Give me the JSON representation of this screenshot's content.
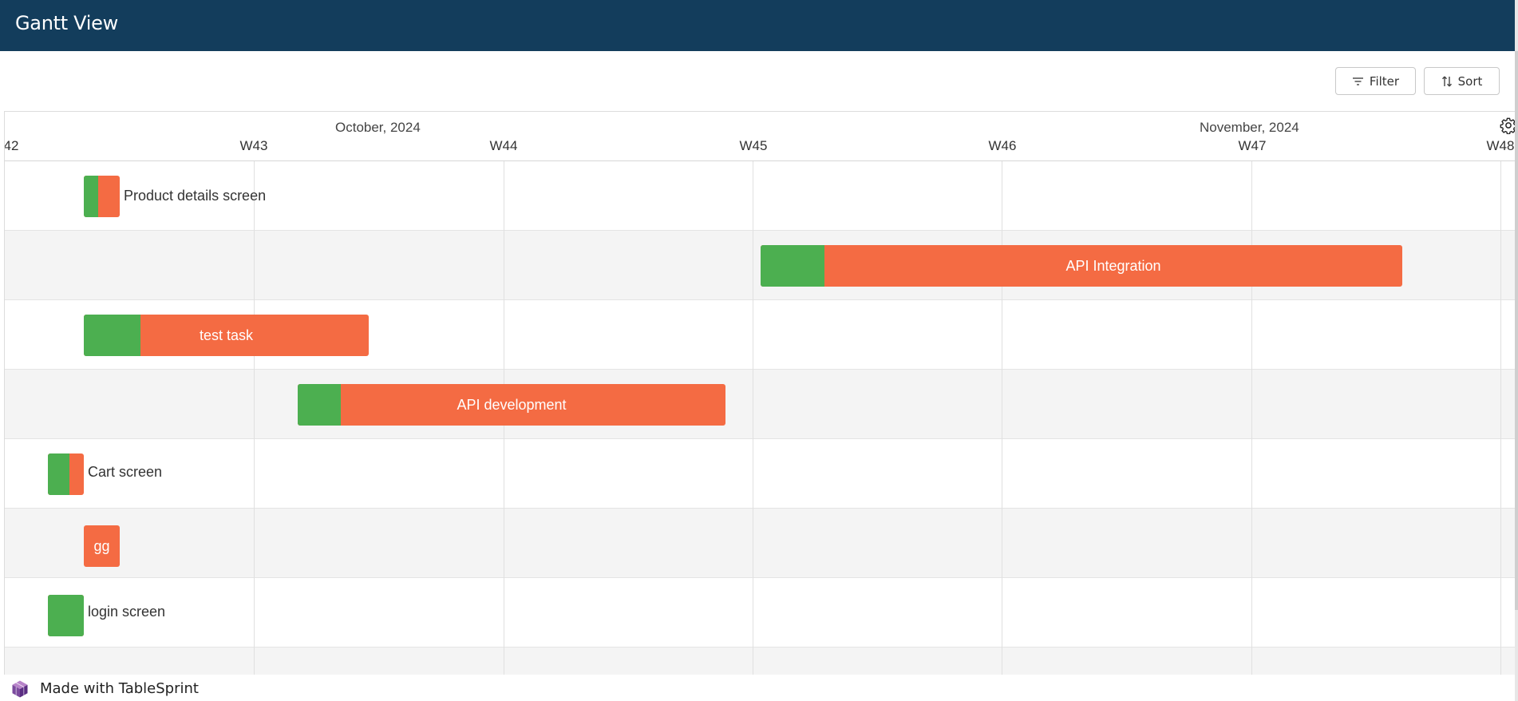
{
  "header": {
    "title": "Gantt View"
  },
  "toolbar": {
    "filter_label": "Filter",
    "sort_label": "Sort",
    "filter_icon": "filter-icon",
    "sort_icon": "sort-icon"
  },
  "timeline": {
    "months": [
      {
        "label": "October, 2024"
      },
      {
        "label": "November, 2024"
      }
    ],
    "weeks": [
      "42",
      "W43",
      "W44",
      "W45",
      "W46",
      "W47",
      "W48"
    ],
    "settings_icon": "gear-icon"
  },
  "tasks": [
    {
      "name": "Product details screen",
      "progress_percent": 40,
      "label_position": "outside"
    },
    {
      "name": "API Integration",
      "progress_percent": 10,
      "label_position": "inside"
    },
    {
      "name": "test task",
      "progress_percent": 20,
      "label_position": "inside"
    },
    {
      "name": "API development",
      "progress_percent": 10,
      "label_position": "inside"
    },
    {
      "name": "Cart screen",
      "progress_percent": 60,
      "label_position": "outside"
    },
    {
      "name": "gg",
      "progress_percent": 0,
      "label_position": "inside"
    },
    {
      "name": "login screen",
      "progress_percent": 100,
      "label_position": "outside"
    }
  ],
  "colors": {
    "header_bg": "#133d5c",
    "bar_remaining": "#f46b43",
    "bar_progress": "#4caf50",
    "row_alt": "#f4f4f4"
  },
  "footer": {
    "text": "Made with TableSprint",
    "logo_icon": "tablesprint-logo-icon"
  }
}
